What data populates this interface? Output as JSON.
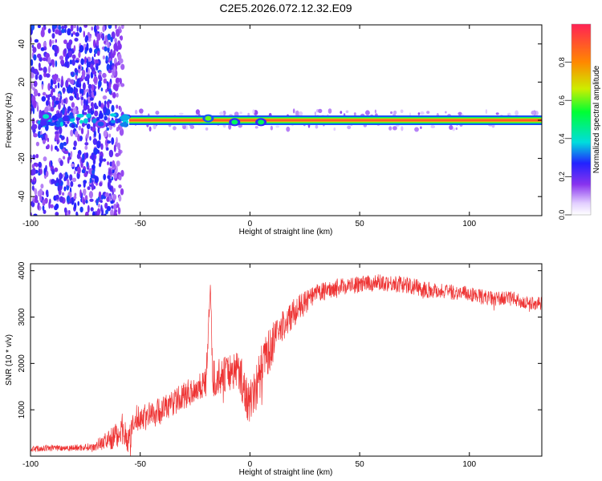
{
  "title": "C2E5.2026.072.12.32.E09",
  "colors": {
    "trace": "#ee3333",
    "frame": "#000000",
    "background": "#ffffff",
    "colormap": [
      "#ffffff",
      "#b070ff",
      "#7722ee",
      "#2222ff",
      "#00dddd",
      "#00ff33",
      "#ccee00",
      "#ff8800",
      "#ff2222"
    ]
  },
  "chart_data": [
    {
      "type": "heatmap",
      "xlabel": "Height of straight line (km)",
      "ylabel": "Frequency (Hz)",
      "xlim": [
        -100,
        133
      ],
      "ylim": [
        -50,
        50
      ],
      "xticks": [
        "-100",
        "-50",
        "0",
        "50",
        "100"
      ],
      "xtick_values": [
        -100,
        -50,
        0,
        50,
        100
      ],
      "yticks": [
        "-40",
        "-20",
        "0",
        "20",
        "40"
      ],
      "ytick_values": [
        -40,
        -20,
        0,
        20,
        40
      ],
      "grid": false,
      "colorbar": {
        "label": "Normalized spectral amplitude",
        "range": [
          0,
          1
        ],
        "ticks": [
          "0.0",
          "0.2",
          "0.4",
          "0.6",
          "0.8"
        ],
        "tick_values": [
          0.0,
          0.2,
          0.4,
          0.6,
          0.8
        ]
      },
      "features": {
        "carrier_band": {
          "frequency": 0,
          "x_from": -55,
          "x_to": 133,
          "amplitude": 1.0
        },
        "noise_region": {
          "x_from": -100,
          "x_to": -58,
          "amplitude_range": [
            0.1,
            0.3
          ]
        },
        "perturbations": [
          {
            "x": -93,
            "frequency": 2,
            "amplitude": 0.4
          },
          {
            "x": -68,
            "frequency": -2,
            "amplitude": 0.3
          },
          {
            "x": -19,
            "frequency": 1,
            "amplitude": 0.6
          },
          {
            "x": -7,
            "frequency": -1,
            "amplitude": 0.5
          },
          {
            "x": 5,
            "frequency": -1,
            "amplitude": 0.5
          }
        ]
      }
    },
    {
      "type": "line",
      "xlabel": "Height of straight line (km)",
      "ylabel": "SNR (10 * v/v)",
      "xlim": [
        -100,
        133
      ],
      "ylim": [
        0,
        4150
      ],
      "xticks": [
        "-100",
        "-50",
        "0",
        "50",
        "100"
      ],
      "xtick_values": [
        -100,
        -50,
        0,
        50,
        100
      ],
      "yticks": [
        "1000",
        "2000",
        "3000",
        "4000"
      ],
      "ytick_values": [
        1000,
        2000,
        3000,
        4000
      ],
      "grid": false,
      "series": [
        {
          "x": [
            -100,
            -90,
            -80,
            -72,
            -68,
            -62,
            -58,
            -55,
            -52,
            -45,
            -40,
            -35,
            -30,
            -25,
            -20,
            -18,
            -17,
            -15,
            -10,
            -5,
            -2,
            0,
            3,
            6,
            10,
            15,
            20,
            25,
            30,
            40,
            50,
            60,
            70,
            80,
            90,
            100,
            110,
            120,
            125,
            133
          ],
          "y": [
            150,
            180,
            180,
            200,
            280,
            400,
            600,
            350,
            800,
            900,
            1000,
            1150,
            1300,
            1450,
            1600,
            3750,
            1650,
            1700,
            1800,
            1900,
            1300,
            1200,
            1500,
            2000,
            2400,
            2800,
            3100,
            3300,
            3500,
            3650,
            3700,
            3750,
            3700,
            3600,
            3550,
            3500,
            3400,
            3400,
            3300,
            3300
          ],
          "noise": [
            70,
            70,
            70,
            80,
            150,
            250,
            350,
            300,
            300,
            300,
            300,
            280,
            300,
            300,
            350,
            100,
            400,
            400,
            400,
            450,
            500,
            500,
            550,
            500,
            450,
            350,
            300,
            250,
            200,
            180,
            180,
            180,
            180,
            180,
            160,
            160,
            160,
            150,
            150,
            140
          ]
        }
      ]
    }
  ]
}
